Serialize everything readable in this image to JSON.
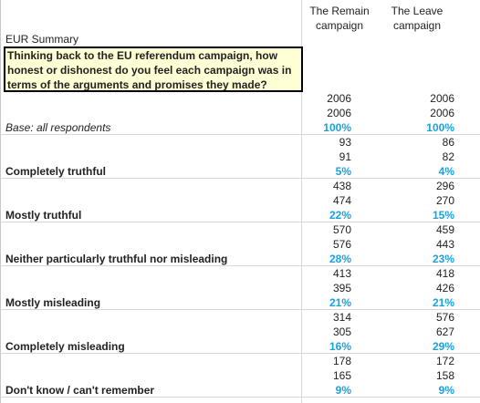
{
  "header": {
    "title": "EUR Summary",
    "question": "Thinking back to the EU referendum campaign, how honest or dishonest do you feel each campaign was in terms of the arguments and promises they made?",
    "columns": [
      "The Remain campaign",
      "The Leave campaign"
    ]
  },
  "base": {
    "label": "Base: all respondents",
    "values": [
      [
        2006,
        2006,
        "100%"
      ],
      [
        2006,
        2006,
        "100%"
      ]
    ]
  },
  "rows": [
    {
      "label": "Completely truthful",
      "values": [
        [
          93,
          91,
          "5%"
        ],
        [
          86,
          82,
          "4%"
        ]
      ]
    },
    {
      "label": "Mostly truthful",
      "values": [
        [
          438,
          474,
          "22%"
        ],
        [
          296,
          270,
          "15%"
        ]
      ]
    },
    {
      "label": "Neither particularly truthful nor misleading",
      "values": [
        [
          570,
          576,
          "28%"
        ],
        [
          459,
          443,
          "23%"
        ]
      ]
    },
    {
      "label": "Mostly misleading",
      "values": [
        [
          413,
          395,
          "21%"
        ],
        [
          418,
          426,
          "21%"
        ]
      ]
    },
    {
      "label": "Completely misleading",
      "values": [
        [
          314,
          305,
          "16%"
        ],
        [
          576,
          627,
          "29%"
        ]
      ]
    },
    {
      "label": "Don't know / can't remember",
      "values": [
        [
          178,
          165,
          "9%"
        ],
        [
          172,
          158,
          "9%"
        ]
      ]
    }
  ]
}
